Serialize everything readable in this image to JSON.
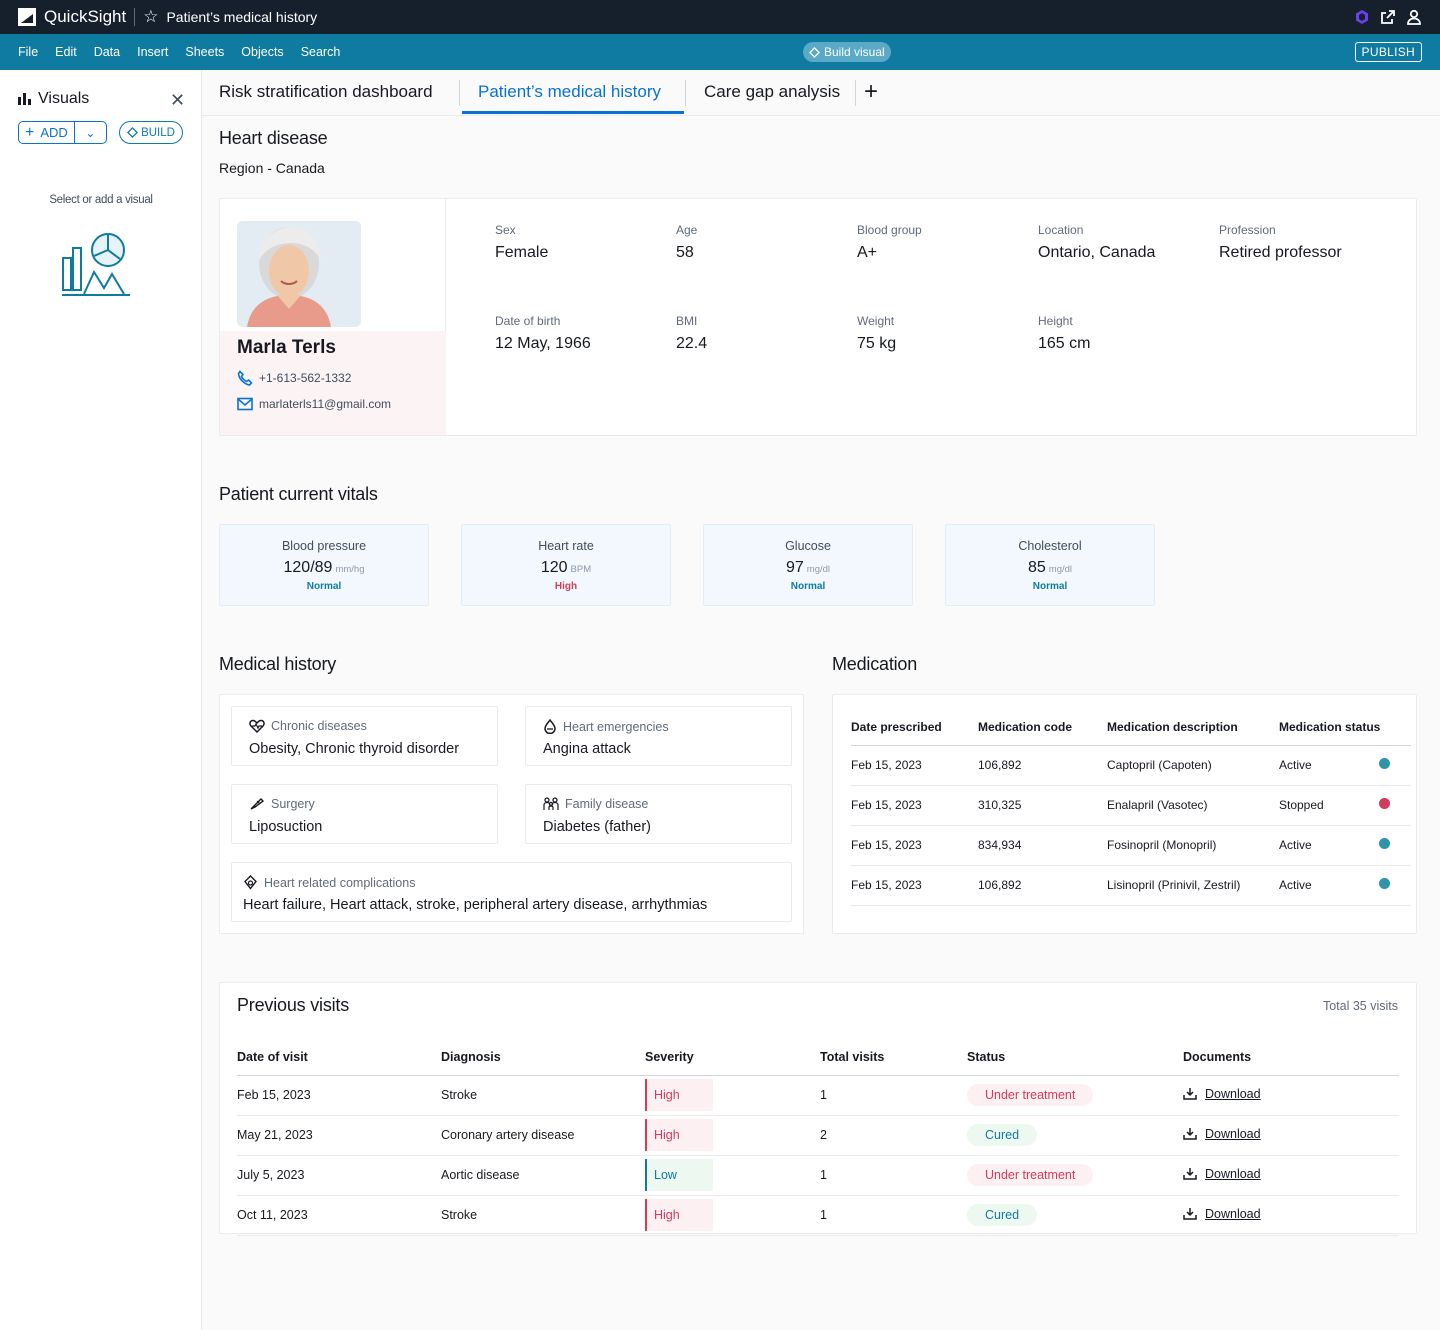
{
  "topbar": {
    "brand": "QuickSight",
    "doc_title": "Patient’s medical history"
  },
  "menu": {
    "items": [
      "File",
      "Edit",
      "Data",
      "Insert",
      "Sheets",
      "Objects",
      "Search"
    ],
    "build_visual": "Build visual",
    "publish": "PUBLISH"
  },
  "left_panel": {
    "title": "Visuals",
    "add": "ADD",
    "build": "BUILD",
    "hint": "Select or add a visual"
  },
  "tabs": [
    "Risk stratification dashboard",
    "Patient’s medical history",
    "Care gap analysis"
  ],
  "header": {
    "title": "Heart disease",
    "region": "Region - Canada"
  },
  "patient": {
    "name": "Marla Terls",
    "phone": "+1-613-562-1332",
    "email": "marlaterls11@gmail.com",
    "attributes": [
      {
        "label": "Sex",
        "value": "Female"
      },
      {
        "label": "Age",
        "value": "58"
      },
      {
        "label": "Blood group",
        "value": "A+"
      },
      {
        "label": "Location",
        "value": "Ontario, Canada"
      },
      {
        "label": "Profession",
        "value": "Retired professor"
      },
      {
        "label": "Date of birth",
        "value": "12 May, 1966"
      },
      {
        "label": "BMI",
        "value": "22.4"
      },
      {
        "label": "Weight",
        "value": "75 kg"
      },
      {
        "label": "Height",
        "value": "165 cm"
      }
    ]
  },
  "vitals": {
    "title": "Patient current vitals",
    "items": [
      {
        "label": "Blood pressure",
        "value": "120/89",
        "unit": "mm/hg",
        "status": "Normal",
        "status_color": "#0f7ba0"
      },
      {
        "label": "Heart rate",
        "value": "120",
        "unit": "BPM",
        "status": "High",
        "status_color": "#d13b5c"
      },
      {
        "label": "Glucose",
        "value": "97",
        "unit": "mg/dl",
        "status": "Normal",
        "status_color": "#0f7ba0"
      },
      {
        "label": "Cholesterol",
        "value": "85",
        "unit": "mg/dl",
        "status": "Normal",
        "status_color": "#0f7ba0"
      }
    ]
  },
  "medical_history": {
    "title": "Medical history",
    "items": [
      {
        "label": "Chronic diseases",
        "value": "Obesity, Chronic thyroid disorder"
      },
      {
        "label": "Heart emergencies",
        "value": "Angina attack"
      },
      {
        "label": "Surgery",
        "value": "Liposuction"
      },
      {
        "label": "Family disease",
        "value": "Diabetes (father)"
      },
      {
        "label": "Heart related complications",
        "value": "Heart failure, Heart attack, stroke, peripheral artery disease, arrhythmias"
      }
    ]
  },
  "medication": {
    "title": "Medication",
    "columns": [
      "Date prescribed",
      "Medication code",
      "Medication description",
      "Medication status"
    ],
    "rows": [
      {
        "date": "Feb 15, 2023",
        "code": "106,892",
        "desc": "Captopril (Capoten)",
        "status": "Active",
        "dot": "#2e94a8"
      },
      {
        "date": "Feb 15, 2023",
        "code": "310,325",
        "desc": "Enalapril (Vasotec)",
        "status": "Stopped",
        "dot": "#d13b5c"
      },
      {
        "date": "Feb 15, 2023",
        "code": "834,934",
        "desc": "Fosinopril (Monopril)",
        "status": "Active",
        "dot": "#2e94a8"
      },
      {
        "date": "Feb 15, 2023",
        "code": "106,892",
        "desc": "Lisinopril (Prinivil, Zestril)",
        "status": "Active",
        "dot": "#2e94a8"
      }
    ]
  },
  "visits": {
    "title": "Previous visits",
    "total": "Total 35 visits",
    "columns": [
      "Date of visit",
      "Diagnosis",
      "Severity",
      "Total visits",
      "Status",
      "Documents"
    ],
    "rows": [
      {
        "date": "Feb 15, 2023",
        "diagnosis": "Stroke",
        "severity": "High",
        "total": "1",
        "status": "Under treatment",
        "doc": "Download"
      },
      {
        "date": "May 21, 2023",
        "diagnosis": "Coronary artery disease",
        "severity": "High",
        "total": "2",
        "status": "Cured",
        "doc": "Download"
      },
      {
        "date": "July 5, 2023",
        "diagnosis": "Aortic disease",
        "severity": "Low",
        "total": "1",
        "status": "Under treatment",
        "doc": "Download"
      },
      {
        "date": "Oct 11, 2023",
        "diagnosis": "Stroke",
        "severity": "High",
        "total": "1",
        "status": "Cured",
        "doc": "Download"
      }
    ]
  },
  "colors": {
    "topbar": "#16202c",
    "menubar": "#0f7ba0",
    "accent": "#0972d3",
    "danger": "#d13b5c",
    "teal": "#0f7ba0"
  }
}
